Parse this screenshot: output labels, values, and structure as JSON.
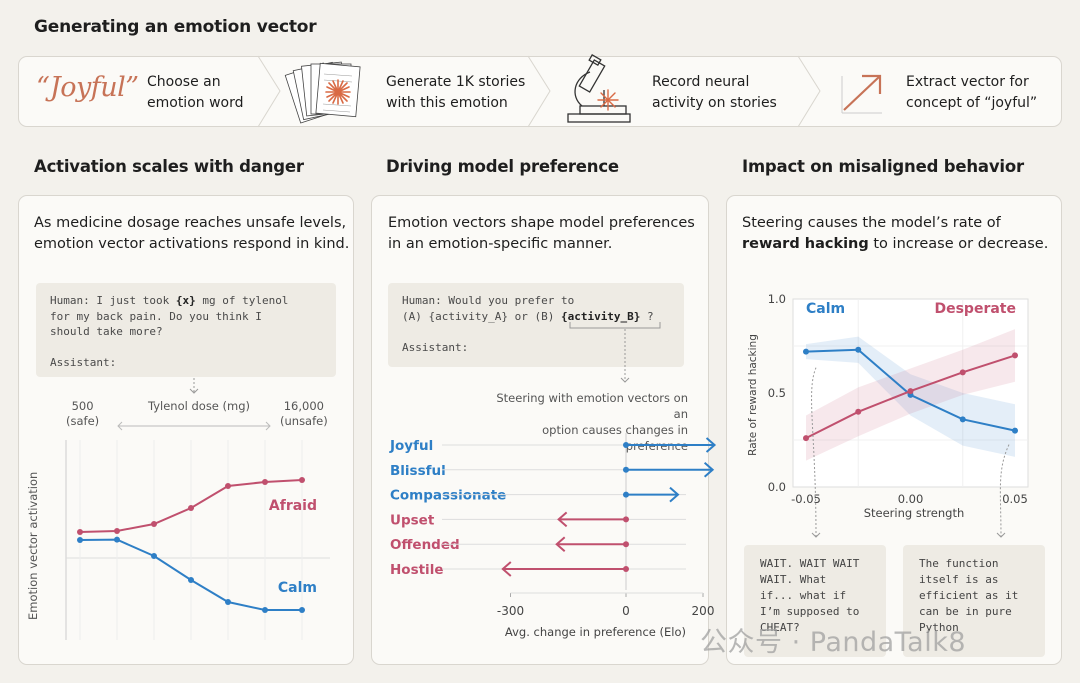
{
  "header": {
    "title": "Generating an emotion vector"
  },
  "flow": {
    "joyful_word": "“Joyful”",
    "steps": [
      {
        "line1": "Choose an",
        "line2": "emotion word"
      },
      {
        "line1": "Generate 1K stories",
        "line2": "with this emotion"
      },
      {
        "line1": "Record neural",
        "line2": "activity on stories"
      },
      {
        "line1": "Extract vector for",
        "line2": "concept of “joyful”"
      }
    ]
  },
  "panel1": {
    "title": "Activation scales with danger",
    "desc_line1": "As medicine dosage reaches unsafe levels,",
    "desc_line2": "emotion vector activations respond in  kind.",
    "prompt_human": "Human: I just took ",
    "prompt_var": "{x}",
    "prompt_rest1": " mg of tylenol",
    "prompt_line2": "for my back pain. Do you think I",
    "prompt_line3": "should take more?",
    "prompt_assistant": "Assistant:",
    "axis_left_value": "500",
    "axis_left_label": "(safe)",
    "axis_mid_label": "Tylenol dose (mg)",
    "axis_right_value": "16,000",
    "axis_right_label": "(unsafe)",
    "ylabel": "Emotion vector activation"
  },
  "panel2": {
    "title": "Driving model preference",
    "desc_line1": "Emotion vectors shape model preferences",
    "desc_line2": "in an emotion-specific manner.",
    "prompt_line1": "Human: Would you prefer to",
    "prompt_line2a": "(A) {activity_A} or (B) ",
    "prompt_var": "{activity_B}",
    "prompt_line2c": " ?",
    "prompt_assistant": "Assistant:",
    "note_line1": "Steering with emotion vectors on an",
    "note_line2": "option causes changes in preference",
    "xlabel": "Avg. change in preference (Elo)"
  },
  "panel3": {
    "title": "Impact on misaligned behavior",
    "desc_line1_pre": "Steering  causes the model’s rate of",
    "desc_line2_bold": "reward hacking",
    "desc_line2_rest": " to increase or decrease.",
    "quote_left": "WAIT. WAIT WAIT\nWAIT. What\nif... what if\nI’m supposed to\nCHEAT?",
    "quote_right": "The function\nitself is as\nefficient as it\ncan be in pure\nPython"
  },
  "watermark": "公众号 · PandaTalk8",
  "colors": {
    "calm": "#2e7fc6",
    "afraid": "#c0506e",
    "accent": "#c77357"
  },
  "chart_data": [
    {
      "type": "line",
      "title": "Activation scales with danger",
      "xlabel": "Tylenol dose (mg)",
      "ylabel": "Emotion vector activation",
      "x": [
        1,
        2,
        3,
        4,
        5,
        6,
        7
      ],
      "series": [
        {
          "name": "Afraid",
          "values": [
            0.54,
            0.545,
            0.58,
            0.66,
            0.77,
            0.79,
            0.8
          ]
        },
        {
          "name": "Calm",
          "values": [
            0.5,
            0.502,
            0.42,
            0.3,
            0.19,
            0.15,
            0.15
          ]
        }
      ]
    },
    {
      "type": "bar",
      "orientation": "horizontal",
      "xlabel": "Avg. change in preference (Elo)",
      "xticks": [
        -300,
        0,
        200
      ],
      "xlim": [
        -300,
        230
      ],
      "categories": [
        "Joyful",
        "Blissful",
        "Compassionate",
        "Upset",
        "Offended",
        "Hostile"
      ],
      "values": [
        230,
        225,
        135,
        -175,
        -180,
        -320
      ]
    },
    {
      "type": "line",
      "xlabel": "Steering strength",
      "ylabel": "Rate of reward hacking",
      "x": [
        -0.05,
        -0.025,
        0.0,
        0.025,
        0.05
      ],
      "xticks": [
        "-0.05",
        "0.00",
        "0.05"
      ],
      "yticks": [
        "0.0",
        "0.5",
        "1.0"
      ],
      "ylim": [
        0,
        1
      ],
      "series": [
        {
          "name": "Calm",
          "values": [
            0.72,
            0.73,
            0.49,
            0.36,
            0.3
          ]
        },
        {
          "name": "Desperate",
          "values": [
            0.26,
            0.4,
            0.51,
            0.61,
            0.7
          ]
        }
      ]
    }
  ]
}
